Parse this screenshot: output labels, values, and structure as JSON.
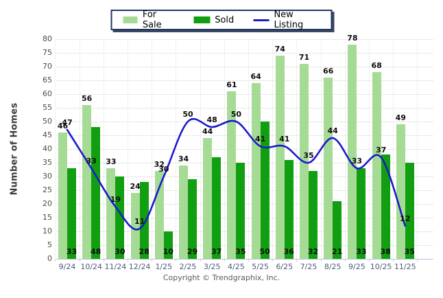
{
  "legend": {
    "items": [
      {
        "label": "For Sale",
        "color": "#a6db96",
        "type": "swatch"
      },
      {
        "label": "Sold",
        "color": "#119f11",
        "type": "swatch"
      },
      {
        "label": "New Listing",
        "color": "#1a1acd",
        "type": "line"
      }
    ]
  },
  "ylabel": "Number of Homes",
  "footer": "Copyright © Trendgraphix, Inc.",
  "chart_data": {
    "type": "bar+line",
    "categories": [
      "9/24",
      "10/24",
      "11/24",
      "12/24",
      "1/25",
      "2/25",
      "3/25",
      "4/25",
      "5/25",
      "6/25",
      "7/25",
      "8/25",
      "9/25",
      "10/25",
      "11/25"
    ],
    "series": [
      {
        "name": "For Sale",
        "type": "bar",
        "color": "#a6db96",
        "values": [
          46,
          56,
          33,
          24,
          32,
          34,
          44,
          61,
          64,
          74,
          71,
          66,
          78,
          68,
          49
        ]
      },
      {
        "name": "Sold",
        "type": "bar",
        "color": "#119f11",
        "values": [
          33,
          48,
          30,
          28,
          10,
          29,
          37,
          35,
          50,
          36,
          32,
          21,
          33,
          38,
          35
        ]
      },
      {
        "name": "New Listing",
        "type": "line",
        "color": "#1a1acd",
        "values": [
          47,
          33,
          19,
          11,
          30,
          50,
          48,
          50,
          41,
          41,
          35,
          44,
          33,
          37,
          12
        ]
      }
    ],
    "ylabel": "Number of Homes",
    "ylim": [
      0,
      80
    ],
    "ytick_step": 5,
    "grid": true,
    "legend_position": "top"
  }
}
